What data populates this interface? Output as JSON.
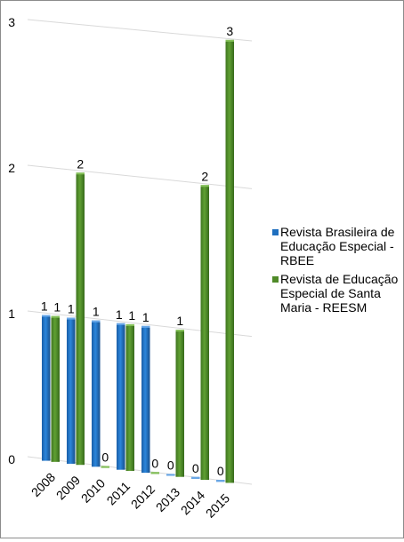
{
  "chart_data": {
    "type": "bar",
    "title": "",
    "xlabel": "",
    "ylabel": "",
    "ylim": [
      0,
      3
    ],
    "yticks": [
      0,
      1,
      2,
      3
    ],
    "grid": true,
    "legend_position": "right",
    "categories": [
      "2008",
      "2009",
      "2010",
      "2011",
      "2012",
      "2013",
      "2014",
      "2015"
    ],
    "series": [
      {
        "name": "Revista Brasileira de Educação Especial - RBEE",
        "legend_lines": [
          "Revista Brasileira de",
          "Educação Especial -",
          "RBEE"
        ],
        "color": "#1f6fbf",
        "values": [
          1,
          1,
          1,
          1,
          1,
          0,
          0,
          0
        ]
      },
      {
        "name": "Revista de Educação Especial de Santa Maria - REESM",
        "legend_lines": [
          "Revista de Educação",
          "Especial de Santa",
          "Maria - REESM"
        ],
        "color": "#4f8a28",
        "values": [
          1,
          2,
          0,
          1,
          0,
          1,
          2,
          3
        ]
      }
    ]
  }
}
